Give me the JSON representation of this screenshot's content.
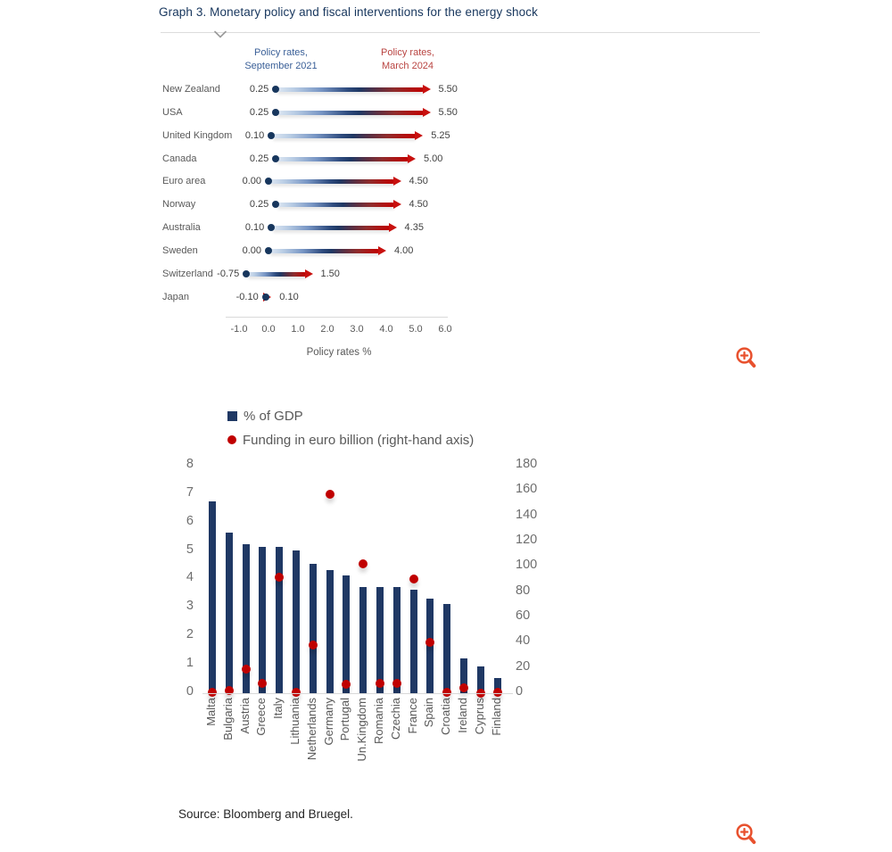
{
  "page": {
    "title": "Graph 3. Monetary policy and fiscal interventions for the energy shock",
    "source": "Source: Bloomberg and Bruegel."
  },
  "icons": {
    "section_collapse": "chevron-down",
    "zoom_top": "magnifier-plus",
    "zoom_bottom": "magnifier-plus"
  },
  "colors": {
    "title_text": "#17365d",
    "navy": "#1f3864",
    "red": "#c00000",
    "header_blue": "#3a5f97",
    "header_red": "#b94441",
    "gray_text": "#595959",
    "axis_line": "#d9d9d9",
    "magnifier_orange": "#e8512e"
  },
  "chart_data": [
    {
      "type": "dumbbell",
      "title": "",
      "start_header": "Policy rates,\nSeptember 2021",
      "end_header": "Policy rates,\nMarch 2024",
      "xlabel": "Policy rates %",
      "xlim": [
        -1.4,
        6.4
      ],
      "x_ticks": [
        -1.0,
        0.0,
        1.0,
        2.0,
        3.0,
        4.0,
        5.0,
        6.0
      ],
      "x_tick_labels": [
        "-1.0",
        "0.0",
        "1.0",
        "2.0",
        "3.0",
        "4.0",
        "5.0",
        "6.0"
      ],
      "rows": [
        {
          "country": "New Zealand",
          "start": 0.25,
          "end": 5.5
        },
        {
          "country": "USA",
          "start": 0.25,
          "end": 5.5
        },
        {
          "country": "United Kingdom",
          "start": 0.1,
          "end": 5.25
        },
        {
          "country": "Canada",
          "start": 0.25,
          "end": 5.0
        },
        {
          "country": "Euro area",
          "start": 0.0,
          "end": 4.5
        },
        {
          "country": "Norway",
          "start": 0.25,
          "end": 4.5
        },
        {
          "country": "Australia",
          "start": 0.1,
          "end": 4.35
        },
        {
          "country": "Sweden",
          "start": 0.0,
          "end": 4.0
        },
        {
          "country": "Switzerland",
          "start": -0.75,
          "end": 1.5
        },
        {
          "country": "Japan",
          "start": -0.1,
          "end": 0.1
        }
      ]
    },
    {
      "type": "bar+scatter",
      "categories": [
        "Malta",
        "Bulgaria",
        "Austria",
        "Greece",
        "Italy",
        "Lithuania",
        "Netherlands",
        "Germany",
        "Portugal",
        "Un.Kingdom",
        "Romania",
        "Czechia",
        "France",
        "Spain",
        "Croatia",
        "Ireland",
        "Cyprus",
        "Finland"
      ],
      "series": [
        {
          "name": "% of GDP",
          "type": "bar",
          "axis": "left",
          "values": [
            6.7,
            5.6,
            5.2,
            5.1,
            5.1,
            5.0,
            4.5,
            4.3,
            4.1,
            3.7,
            3.7,
            3.7,
            3.6,
            3.3,
            3.1,
            1.2,
            0.9,
            0.5
          ]
        },
        {
          "name": "Funding in euro billion (right-hand axis)",
          "type": "scatter",
          "axis": "right",
          "values": [
            1,
            2,
            19,
            8,
            92,
            1,
            38,
            157,
            7,
            102,
            8,
            8,
            90,
            40,
            1,
            4,
            0,
            1
          ]
        }
      ],
      "left_axis": {
        "min": 0,
        "max": 8,
        "step": 1,
        "ticks": [
          0,
          1,
          2,
          3,
          4,
          5,
          6,
          7,
          8
        ]
      },
      "right_axis": {
        "min": 0,
        "max": 180,
        "step": 20,
        "ticks": [
          0,
          20,
          40,
          60,
          80,
          100,
          120,
          140,
          160,
          180
        ]
      },
      "legend_position": "top-left",
      "grid": false
    }
  ]
}
